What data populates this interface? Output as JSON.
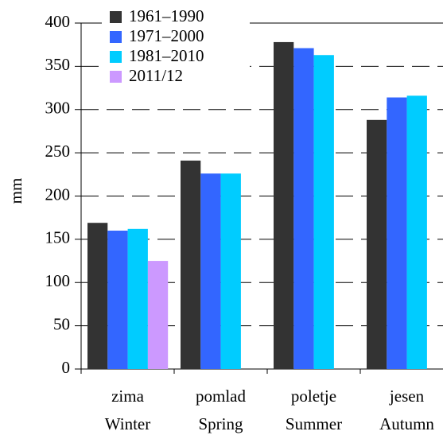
{
  "chart_data": {
    "type": "bar",
    "ylabel": "mm",
    "categories": [
      [
        "zima",
        "Winter"
      ],
      [
        "pomlad",
        "Spring"
      ],
      [
        "poletje",
        "Summer"
      ],
      [
        "jesen",
        "Autumn"
      ]
    ],
    "series": [
      {
        "name": "1961–1990",
        "color": "#333333",
        "values": [
          169,
          241,
          378,
          288
        ]
      },
      {
        "name": "1971–2000",
        "color": "#3366ff",
        "values": [
          160,
          226,
          371,
          314
        ]
      },
      {
        "name": "1981–2010",
        "color": "#00ccff",
        "values": [
          162,
          226,
          363,
          316
        ]
      },
      {
        "name": "2011/12",
        "color": "#cc99ff",
        "values": [
          125,
          null,
          null,
          null
        ]
      }
    ],
    "ylim": [
      0,
      400
    ],
    "yticks": [
      0,
      50,
      100,
      150,
      200,
      250,
      300,
      350,
      400
    ],
    "grid": true,
    "legend": "upper left"
  }
}
